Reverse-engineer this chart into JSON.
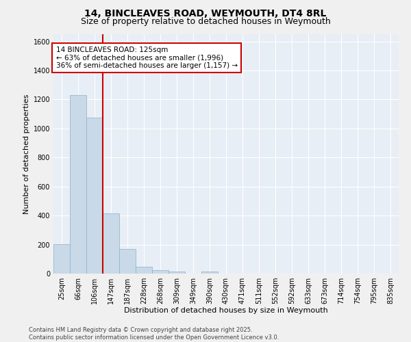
{
  "title": "14, BINCLEAVES ROAD, WEYMOUTH, DT4 8RL",
  "subtitle": "Size of property relative to detached houses in Weymouth",
  "xlabel": "Distribution of detached houses by size in Weymouth",
  "ylabel": "Number of detached properties",
  "categories": [
    "25sqm",
    "66sqm",
    "106sqm",
    "147sqm",
    "187sqm",
    "228sqm",
    "268sqm",
    "309sqm",
    "349sqm",
    "390sqm",
    "430sqm",
    "471sqm",
    "511sqm",
    "552sqm",
    "592sqm",
    "633sqm",
    "673sqm",
    "714sqm",
    "754sqm",
    "795sqm",
    "835sqm"
  ],
  "values": [
    205,
    1230,
    1075,
    415,
    172,
    47,
    25,
    12,
    0,
    12,
    0,
    0,
    0,
    0,
    0,
    0,
    0,
    0,
    0,
    0,
    0
  ],
  "bar_color": "#c9d9e8",
  "bar_edge_color": "#8ab0cc",
  "vline_x": 2.5,
  "vline_color": "#cc0000",
  "annotation_text": "14 BINCLEAVES ROAD: 125sqm\n← 63% of detached houses are smaller (1,996)\n36% of semi-detached houses are larger (1,157) →",
  "annotation_box_color": "#ffffff",
  "annotation_box_edge": "#cc0000",
  "ylim": [
    0,
    1650
  ],
  "yticks": [
    0,
    200,
    400,
    600,
    800,
    1000,
    1200,
    1400,
    1600
  ],
  "footer_line1": "Contains HM Land Registry data © Crown copyright and database right 2025.",
  "footer_line2": "Contains public sector information licensed under the Open Government Licence v3.0.",
  "bg_color": "#e8eef5",
  "fig_bg_color": "#f0f0f0",
  "grid_color": "#ffffff",
  "title_fontsize": 10,
  "subtitle_fontsize": 9,
  "axis_label_fontsize": 8,
  "tick_fontsize": 7,
  "annotation_fontsize": 7.5,
  "footer_fontsize": 6
}
